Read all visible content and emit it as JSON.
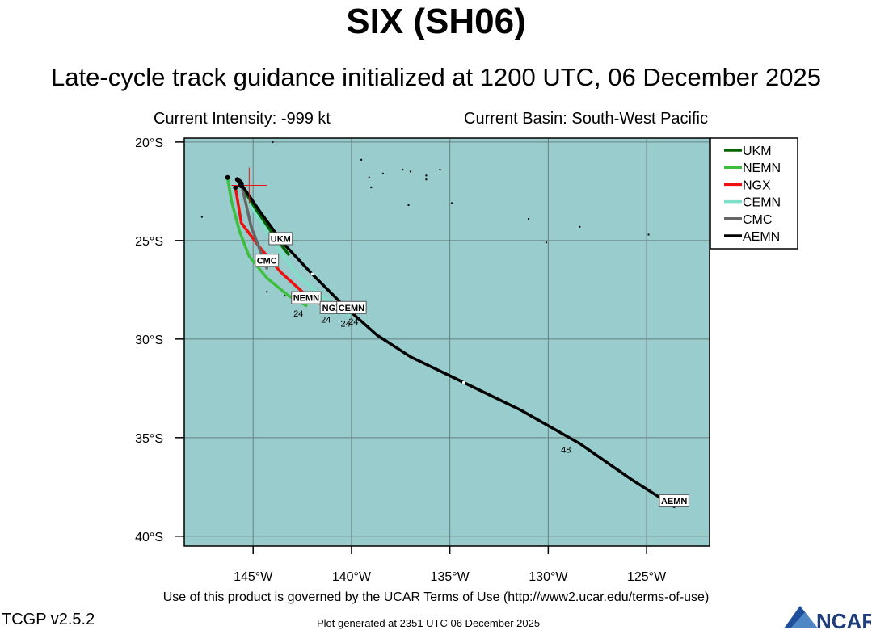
{
  "header": {
    "title": "SIX (SH06)",
    "subtitle": "Late-cycle track guidance initialized at 1200 UTC, 06 December 2025",
    "current_intensity": "Current Intensity: -999 kt",
    "current_basin": "Current Basin: South-West Pacific"
  },
  "footer": {
    "terms": "Use of this product is governed by the UCAR Terms of Use (http://www2.ucar.edu/terms-of-use)",
    "version": "TCGP v2.5.2",
    "generated": "Plot generated at 2351 UTC   06 December 2025",
    "logo_text": "NCAR"
  },
  "colors": {
    "ocean": "#99cccc",
    "UKM": "#006400",
    "NEMN": "#3dbf3d",
    "NGX": "#ee1111",
    "CEMN": "#7fe0c8",
    "CMC": "#666666",
    "AEMN": "#000000",
    "current_position": "#ee1111"
  },
  "chart_data": {
    "type": "map-track",
    "x_axis": {
      "min": -148.5,
      "max": -121.8,
      "ticks": [
        -145,
        -140,
        -135,
        -130,
        -125
      ],
      "tick_labels": [
        "145°W",
        "140°W",
        "135°W",
        "130°W",
        "125°W"
      ]
    },
    "y_axis": {
      "min": -40.5,
      "max": -19.8,
      "ticks": [
        -20,
        -25,
        -30,
        -35,
        -40
      ],
      "tick_labels": [
        "20°S",
        "25°S",
        "30°S",
        "35°S",
        "40°S"
      ]
    },
    "grid": true,
    "legend_position": "top-right",
    "current_position": {
      "lon": -145.2,
      "lat": -22.2
    },
    "series": [
      {
        "name": "UKM",
        "label": "UKM",
        "points": [
          [
            -145.8,
            -21.9
          ],
          [
            -144.8,
            -23.5
          ],
          [
            -143.9,
            -24.8
          ],
          [
            -143.2,
            -25.7
          ]
        ],
        "hours": [],
        "label_at": [
          -143.6,
          -24.9
        ]
      },
      {
        "name": "NEMN",
        "label": "NEMN",
        "points": [
          [
            -146.3,
            -21.8
          ],
          [
            -146.1,
            -23.0
          ],
          [
            -145.7,
            -24.5
          ],
          [
            -145.2,
            -25.8
          ],
          [
            -144.3,
            -26.9
          ],
          [
            -143.2,
            -27.8
          ],
          [
            -142.3,
            -28.3
          ]
        ],
        "hours": [
          {
            "text": "24",
            "at": [
              -142.7,
              -28.7
            ]
          }
        ],
        "label_at": [
          -142.3,
          -27.9
        ]
      },
      {
        "name": "NGX",
        "label": "NGX",
        "points": [
          [
            -145.9,
            -22.3
          ],
          [
            -145.6,
            -24.1
          ],
          [
            -144.7,
            -25.3
          ],
          [
            -143.6,
            -26.6
          ],
          [
            -142.5,
            -27.6
          ],
          [
            -141.0,
            -28.6
          ]
        ],
        "hours": [
          {
            "text": "24",
            "at": [
              -141.3,
              -29.0
            ]
          }
        ],
        "label_at": [
          -141.0,
          -28.4
        ]
      },
      {
        "name": "CEMN",
        "label": "CEMN",
        "points": [
          [
            -145.7,
            -22.0
          ],
          [
            -144.9,
            -23.6
          ],
          [
            -143.9,
            -25.2
          ],
          [
            -142.7,
            -26.8
          ],
          [
            -141.4,
            -27.9
          ],
          [
            -140.1,
            -28.8
          ]
        ],
        "hours": [
          {
            "text": "24",
            "at": [
              -140.3,
              -29.2
            ]
          }
        ],
        "label_at": [
          -140.0,
          -28.4
        ]
      },
      {
        "name": "CMC",
        "label": "CMC",
        "points": [
          [
            -145.6,
            -22.1
          ],
          [
            -145.1,
            -24.3
          ],
          [
            -144.3,
            -26.4
          ]
        ],
        "hours": [],
        "label_at": [
          -144.3,
          -26.0
        ]
      },
      {
        "name": "AEMN",
        "label": "AEMN",
        "points": [
          [
            -145.7,
            -22.0
          ],
          [
            -144.6,
            -23.6
          ],
          [
            -143.5,
            -25.1
          ],
          [
            -142.0,
            -26.7
          ],
          [
            -140.4,
            -28.3
          ],
          [
            -138.7,
            -29.8
          ],
          [
            -137.0,
            -30.9
          ],
          [
            -134.3,
            -32.2
          ],
          [
            -131.4,
            -33.6
          ],
          [
            -128.4,
            -35.3
          ],
          [
            -125.8,
            -37.1
          ],
          [
            -123.6,
            -38.5
          ]
        ],
        "hours": [
          {
            "text": "24",
            "at": [
              -139.9,
              -29.1
            ]
          },
          {
            "text": "48",
            "at": [
              -129.1,
              -35.6
            ]
          }
        ],
        "label_at": [
          -123.6,
          -38.2
        ]
      }
    ],
    "islands": [
      [
        -144.0,
        -20.0
      ],
      [
        -139.5,
        -20.9
      ],
      [
        -138.4,
        -21.6
      ],
      [
        -139.1,
        -21.8
      ],
      [
        -139.0,
        -22.3
      ],
      [
        -137.4,
        -21.4
      ],
      [
        -137.0,
        -21.5
      ],
      [
        -136.2,
        -21.7
      ],
      [
        -135.5,
        -21.4
      ],
      [
        -136.2,
        -21.9
      ],
      [
        -134.9,
        -23.1
      ],
      [
        -137.1,
        -23.2
      ],
      [
        -131.0,
        -23.9
      ],
      [
        -128.4,
        -24.3
      ],
      [
        -124.9,
        -24.7
      ],
      [
        -130.1,
        -25.1
      ],
      [
        -147.6,
        -23.8
      ],
      [
        -144.3,
        -27.6
      ],
      [
        -143.4,
        -27.8
      ],
      [
        -141.5,
        -28.4
      ]
    ]
  }
}
